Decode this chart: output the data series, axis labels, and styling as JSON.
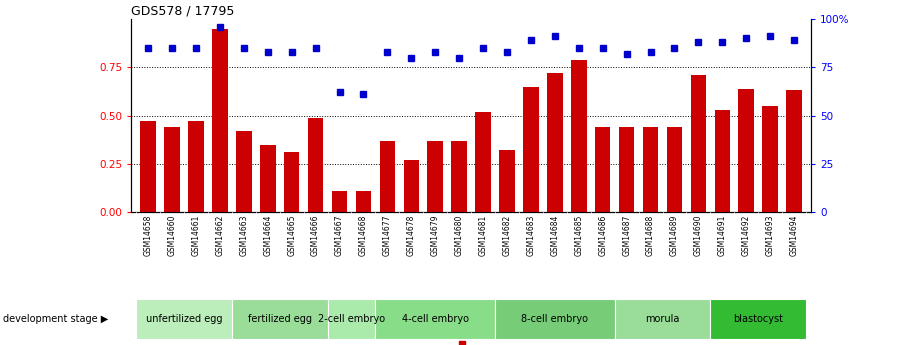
{
  "title": "GDS578 / 17795",
  "samples": [
    "GSM14658",
    "GSM14660",
    "GSM14661",
    "GSM14662",
    "GSM14663",
    "GSM14664",
    "GSM14665",
    "GSM14666",
    "GSM14667",
    "GSM14668",
    "GSM14677",
    "GSM14678",
    "GSM14679",
    "GSM14680",
    "GSM14681",
    "GSM14682",
    "GSM14683",
    "GSM14684",
    "GSM14685",
    "GSM14686",
    "GSM14687",
    "GSM14688",
    "GSM14689",
    "GSM14690",
    "GSM14691",
    "GSM14692",
    "GSM14693",
    "GSM14694"
  ],
  "log_ratio": [
    0.47,
    0.44,
    0.47,
    0.95,
    0.42,
    0.35,
    0.31,
    0.49,
    0.11,
    0.11,
    0.37,
    0.27,
    0.37,
    0.37,
    0.52,
    0.32,
    0.65,
    0.72,
    0.79,
    0.44,
    0.44,
    0.44,
    0.44,
    0.71,
    0.53,
    0.64,
    0.55,
    0.63
  ],
  "percentile": [
    85,
    85,
    85,
    96,
    85,
    83,
    83,
    85,
    62,
    61,
    83,
    80,
    83,
    80,
    85,
    83,
    89,
    91,
    85,
    85,
    82,
    83,
    85,
    88,
    88,
    90,
    91,
    89
  ],
  "stages": [
    {
      "label": "unfertilized egg",
      "start": 0,
      "end": 4,
      "color": "#bbeebb"
    },
    {
      "label": "fertilized egg",
      "start": 4,
      "end": 8,
      "color": "#99dd99"
    },
    {
      "label": "2-cell embryo",
      "start": 8,
      "end": 10,
      "color": "#aaeaaa"
    },
    {
      "label": "4-cell embryo",
      "start": 10,
      "end": 15,
      "color": "#88dd88"
    },
    {
      "label": "8-cell embryo",
      "start": 15,
      "end": 20,
      "color": "#77cc77"
    },
    {
      "label": "morula",
      "start": 20,
      "end": 24,
      "color": "#99dd99"
    },
    {
      "label": "blastocyst",
      "start": 24,
      "end": 28,
      "color": "#33bb33"
    }
  ],
  "bar_color": "#cc0000",
  "dot_color": "#0000cc",
  "ylim_left": [
    0,
    1.0
  ],
  "ylim_right": [
    0,
    100
  ],
  "yticks_left": [
    0,
    0.25,
    0.5,
    0.75
  ],
  "yticks_right": [
    0,
    25,
    50,
    75,
    100
  ],
  "xtick_bg_color": "#cccccc",
  "stage_bg_color": "#dddddd",
  "dev_stage_label": "development stage"
}
